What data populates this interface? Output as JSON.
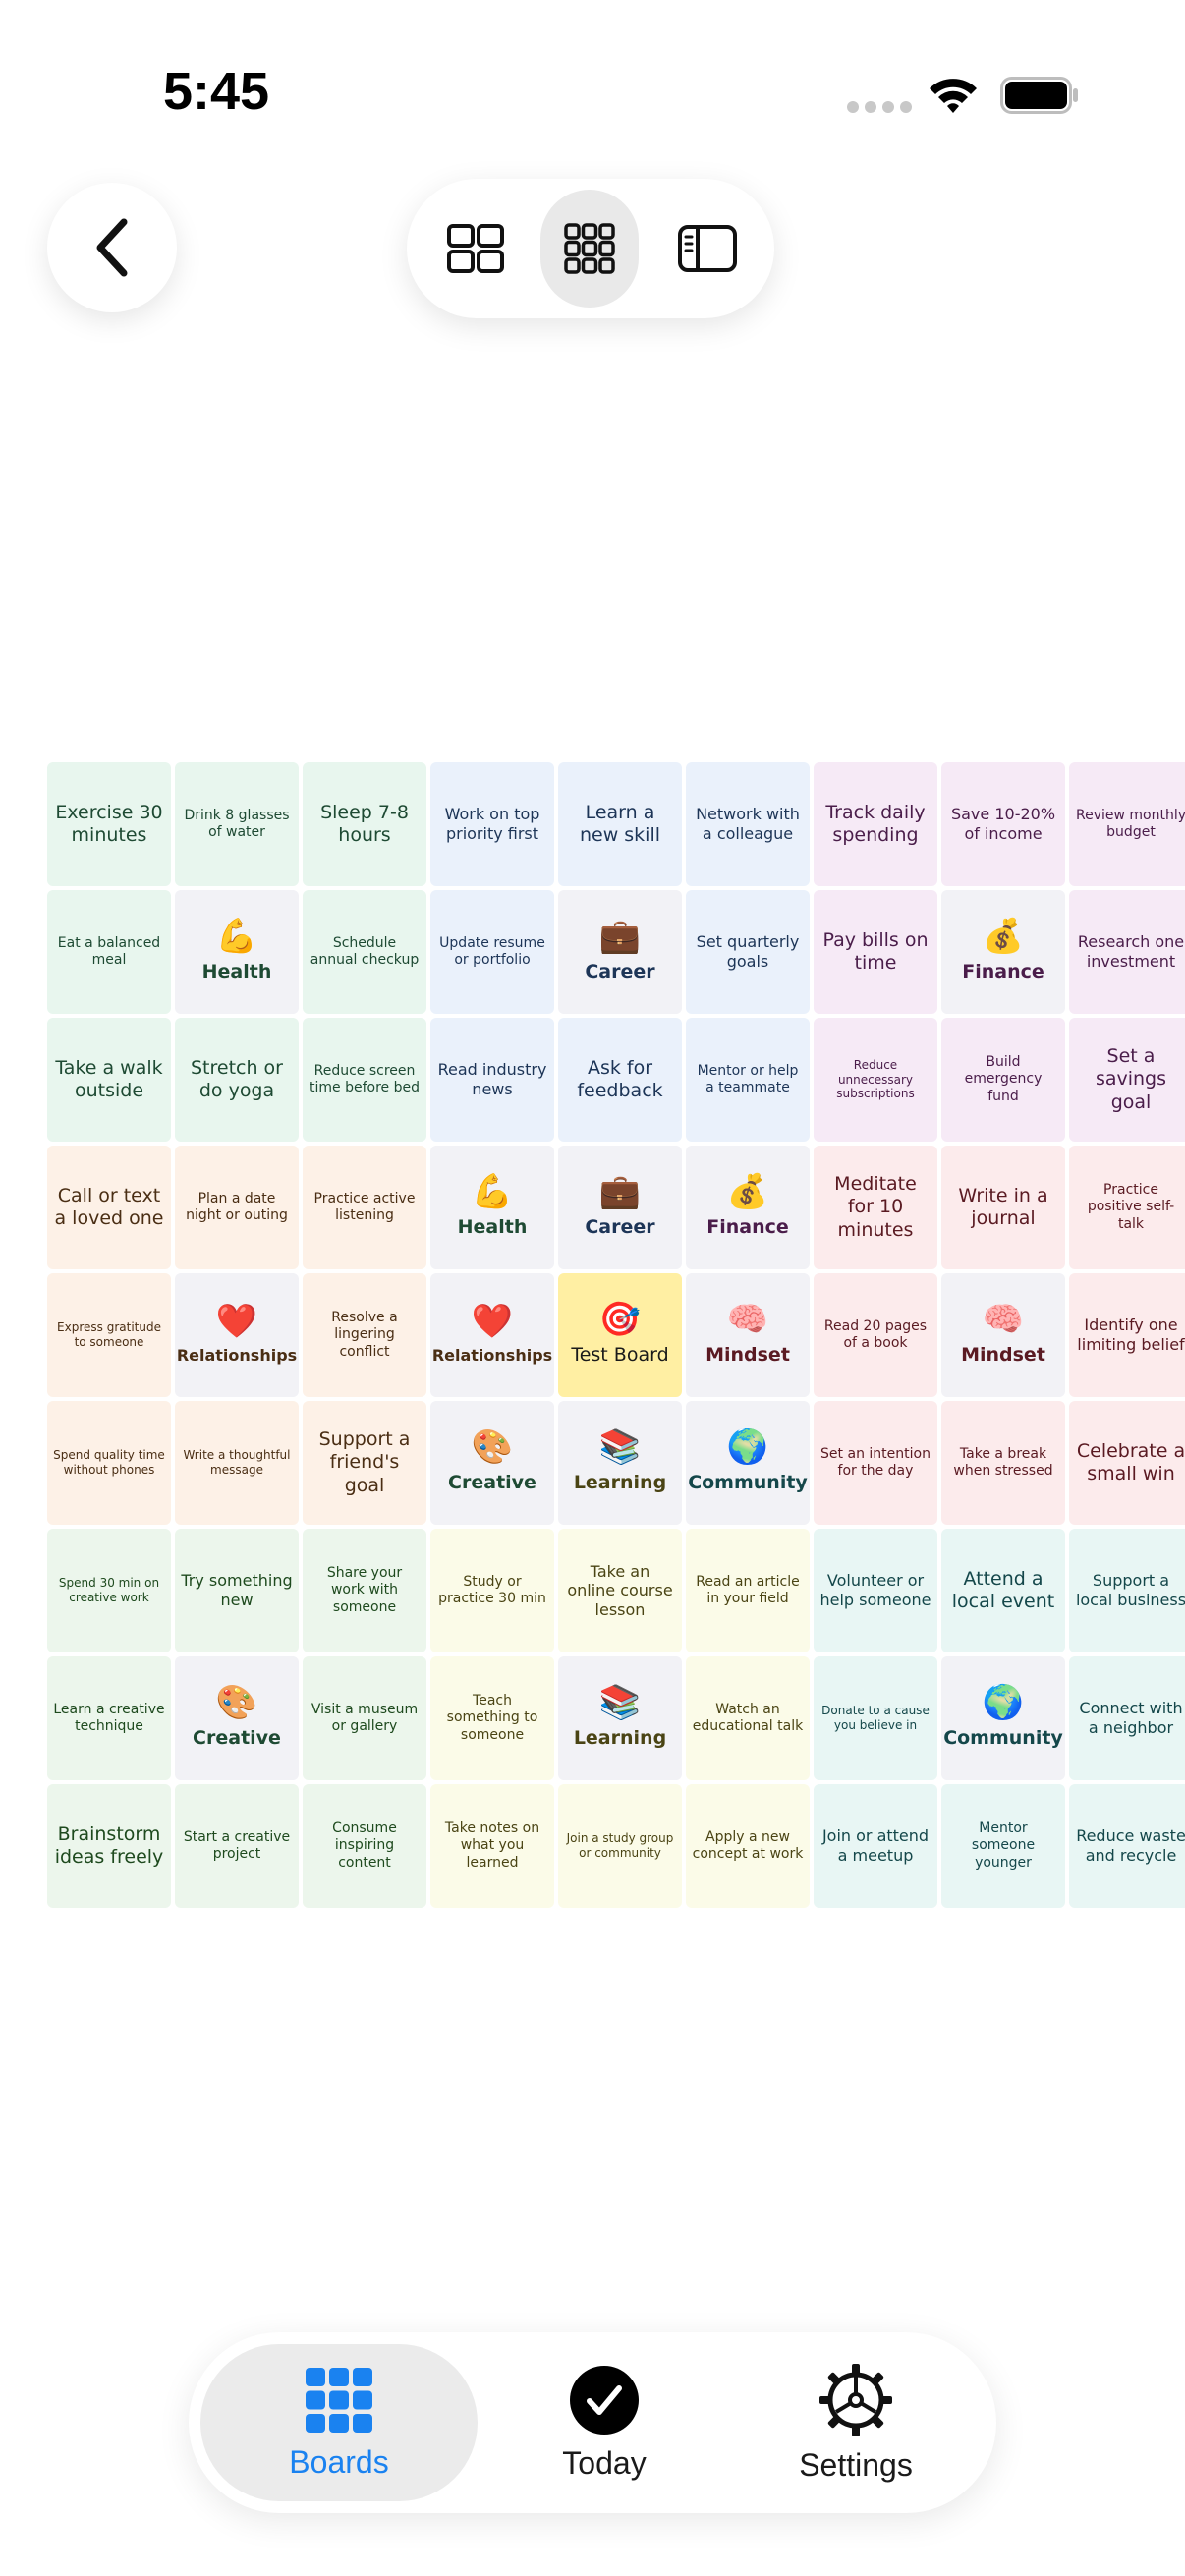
{
  "status_bar": {
    "time": "5:45"
  },
  "tab_bar": {
    "items": [
      {
        "label": "Boards",
        "icon": "grid-icon",
        "active": true
      },
      {
        "label": "Today",
        "icon": "checkmark-circle-icon",
        "active": false
      },
      {
        "label": "Settings",
        "icon": "gear-icon",
        "active": false
      }
    ]
  },
  "board": {
    "rows": [
      [
        {
          "text": "Exercise 30 minutes",
          "kind": "goal",
          "color": "#e8f6ee",
          "fg": "#1e4a33",
          "size": "l"
        },
        {
          "text": "Drink 8 glasses of water",
          "kind": "goal",
          "color": "#e8f6ee",
          "fg": "#1e4a33",
          "size": "s"
        },
        {
          "text": "Sleep 7-8 hours",
          "kind": "goal",
          "color": "#e8f6ee",
          "fg": "#1e4a33",
          "size": "l"
        },
        {
          "text": "Work on top priority first",
          "kind": "goal",
          "color": "#eaf1fb",
          "fg": "#1d3557",
          "size": "m"
        },
        {
          "text": "Learn a new skill",
          "kind": "goal",
          "color": "#eaf1fb",
          "fg": "#1d3557",
          "size": "l"
        },
        {
          "text": "Network with a colleague",
          "kind": "goal",
          "color": "#eaf1fb",
          "fg": "#1d3557",
          "size": "m"
        },
        {
          "text": "Track daily spending",
          "kind": "goal",
          "color": "#f6eaf6",
          "fg": "#4a1d4a",
          "size": "l"
        },
        {
          "text": "Save 10-20% of income",
          "kind": "goal",
          "color": "#f6eaf6",
          "fg": "#4a1d4a",
          "size": "m"
        },
        {
          "text": "Review monthly budget",
          "kind": "goal",
          "color": "#f6eaf6",
          "fg": "#4a1d4a",
          "size": "s"
        }
      ],
      [
        {
          "text": "Eat a balanced meal",
          "kind": "goal",
          "color": "#e8f6ee",
          "fg": "#1e4a33",
          "size": "s"
        },
        {
          "text": "Health",
          "kind": "category",
          "emoji": "💪",
          "color": "#f2f2f6",
          "fg": "#1e4a33"
        },
        {
          "text": "Schedule annual checkup",
          "kind": "goal",
          "color": "#e8f6ee",
          "fg": "#1e4a33",
          "size": "s"
        },
        {
          "text": "Update resume or portfolio",
          "kind": "goal",
          "color": "#eaf1fb",
          "fg": "#1d3557",
          "size": "s"
        },
        {
          "text": "Career",
          "kind": "category",
          "emoji": "💼",
          "color": "#f2f2f6",
          "fg": "#1d3557"
        },
        {
          "text": "Set quarterly goals",
          "kind": "goal",
          "color": "#eaf1fb",
          "fg": "#1d3557",
          "size": "m"
        },
        {
          "text": "Pay bills on time",
          "kind": "goal",
          "color": "#f6eaf6",
          "fg": "#4a1d4a",
          "size": "l"
        },
        {
          "text": "Finance",
          "kind": "category",
          "emoji": "💰",
          "color": "#f2f2f6",
          "fg": "#4a1d4a"
        },
        {
          "text": "Research one investment",
          "kind": "goal",
          "color": "#f6eaf6",
          "fg": "#4a1d4a",
          "size": "m"
        }
      ],
      [
        {
          "text": "Take a walk outside",
          "kind": "goal",
          "color": "#e8f6ee",
          "fg": "#1e4a33",
          "size": "l"
        },
        {
          "text": "Stretch or do yoga",
          "kind": "goal",
          "color": "#e8f6ee",
          "fg": "#1e4a33",
          "size": "l"
        },
        {
          "text": "Reduce screen time before bed",
          "kind": "goal",
          "color": "#e8f6ee",
          "fg": "#1e4a33",
          "size": "s"
        },
        {
          "text": "Read industry news",
          "kind": "goal",
          "color": "#eaf1fb",
          "fg": "#1d3557",
          "size": "m"
        },
        {
          "text": "Ask for feedback",
          "kind": "goal",
          "color": "#eaf1fb",
          "fg": "#1d3557",
          "size": "l"
        },
        {
          "text": "Mentor or help a teammate",
          "kind": "goal",
          "color": "#eaf1fb",
          "fg": "#1d3557",
          "size": "s"
        },
        {
          "text": "Reduce unnecessary subscriptions",
          "kind": "goal",
          "color": "#f6eaf6",
          "fg": "#4a1d4a",
          "size": "xs"
        },
        {
          "text": "Build emergency fund",
          "kind": "goal",
          "color": "#f6eaf6",
          "fg": "#4a1d4a",
          "size": "s"
        },
        {
          "text": "Set a savings goal",
          "kind": "goal",
          "color": "#f6eaf6",
          "fg": "#4a1d4a",
          "size": "l"
        }
      ],
      [
        {
          "text": "Call or text a loved one",
          "kind": "goal",
          "color": "#fdf1e7",
          "fg": "#4a2e14",
          "size": "l"
        },
        {
          "text": "Plan a date night or outing",
          "kind": "goal",
          "color": "#fdf1e7",
          "fg": "#4a2e14",
          "size": "s"
        },
        {
          "text": "Practice active listening",
          "kind": "goal",
          "color": "#fdf1e7",
          "fg": "#4a2e14",
          "size": "s"
        },
        {
          "text": "Health",
          "kind": "category",
          "emoji": "💪",
          "color": "#f2f2f6",
          "fg": "#1e4a33"
        },
        {
          "text": "Career",
          "kind": "category",
          "emoji": "💼",
          "color": "#f2f2f6",
          "fg": "#1d3557"
        },
        {
          "text": "Finance",
          "kind": "category",
          "emoji": "💰",
          "color": "#f2f2f6",
          "fg": "#4a1d4a"
        },
        {
          "text": "Meditate for 10 minutes",
          "kind": "goal",
          "color": "#fcebec",
          "fg": "#5a1a22",
          "size": "l"
        },
        {
          "text": "Write in a journal",
          "kind": "goal",
          "color": "#fcebec",
          "fg": "#5a1a22",
          "size": "l"
        },
        {
          "text": "Practice positive self-talk",
          "kind": "goal",
          "color": "#fcebec",
          "fg": "#5a1a22",
          "size": "s"
        }
      ],
      [
        {
          "text": "Express gratitude to someone",
          "kind": "goal",
          "color": "#fdf1e7",
          "fg": "#4a2e14",
          "size": "xs"
        },
        {
          "text": "Relationships",
          "kind": "category",
          "emoji": "❤️",
          "color": "#f2f2f6",
          "fg": "#4a2e14",
          "small": true
        },
        {
          "text": "Resolve a lingering conflict",
          "kind": "goal",
          "color": "#fdf1e7",
          "fg": "#4a2e14",
          "size": "s"
        },
        {
          "text": "Relationships",
          "kind": "category",
          "emoji": "❤️",
          "color": "#f2f2f6",
          "fg": "#4a2e14",
          "small": true
        },
        {
          "text": "Test Board",
          "kind": "center",
          "emoji": "🎯",
          "color": "#ffefa3",
          "fg": "#1a1a1a"
        },
        {
          "text": "Mindset",
          "kind": "category",
          "emoji": "🧠",
          "color": "#f2f2f6",
          "fg": "#5a1a22"
        },
        {
          "text": "Read 20 pages of a book",
          "kind": "goal",
          "color": "#fcebec",
          "fg": "#5a1a22",
          "size": "s"
        },
        {
          "text": "Mindset",
          "kind": "category",
          "emoji": "🧠",
          "color": "#f2f2f6",
          "fg": "#5a1a22"
        },
        {
          "text": "Identify one limiting belief",
          "kind": "goal",
          "color": "#fcebec",
          "fg": "#5a1a22",
          "size": "m"
        }
      ],
      [
        {
          "text": "Spend quality time without phones",
          "kind": "goal",
          "color": "#fdf1e7",
          "fg": "#4a2e14",
          "size": "xs"
        },
        {
          "text": "Write a thoughtful message",
          "kind": "goal",
          "color": "#fdf1e7",
          "fg": "#4a2e14",
          "size": "xs"
        },
        {
          "text": "Support a friend's goal",
          "kind": "goal",
          "color": "#fdf1e7",
          "fg": "#4a2e14",
          "size": "l"
        },
        {
          "text": "Creative",
          "kind": "category",
          "emoji": "🎨",
          "color": "#f2f2f6",
          "fg": "#1e4a33"
        },
        {
          "text": "Learning",
          "kind": "category",
          "emoji": "📚",
          "color": "#f2f2f6",
          "fg": "#4a4414"
        },
        {
          "text": "Community",
          "kind": "category",
          "emoji": "🌍",
          "color": "#f2f2f6",
          "fg": "#14474a"
        },
        {
          "text": "Set an intention for the day",
          "kind": "goal",
          "color": "#fcebec",
          "fg": "#5a1a22",
          "size": "s"
        },
        {
          "text": "Take a break when stressed",
          "kind": "goal",
          "color": "#fcebec",
          "fg": "#5a1a22",
          "size": "s"
        },
        {
          "text": "Celebrate a small win",
          "kind": "goal",
          "color": "#fcebec",
          "fg": "#5a1a22",
          "size": "l"
        }
      ],
      [
        {
          "text": "Spend 30 min on creative work",
          "kind": "goal",
          "color": "#ecf6ec",
          "fg": "#1e4a1e",
          "size": "xs"
        },
        {
          "text": "Try something new",
          "kind": "goal",
          "color": "#ecf6ec",
          "fg": "#1e4a1e",
          "size": "m"
        },
        {
          "text": "Share your work with someone",
          "kind": "goal",
          "color": "#ecf6ec",
          "fg": "#1e4a1e",
          "size": "s"
        },
        {
          "text": "Study or practice 30 min",
          "kind": "goal",
          "color": "#fbfbe8",
          "fg": "#4a4414",
          "size": "s"
        },
        {
          "text": "Take an online course lesson",
          "kind": "goal",
          "color": "#fbfbe8",
          "fg": "#4a4414",
          "size": "m"
        },
        {
          "text": "Read an article in your field",
          "kind": "goal",
          "color": "#fbfbe8",
          "fg": "#4a4414",
          "size": "s"
        },
        {
          "text": "Volunteer or help someone",
          "kind": "goal",
          "color": "#e8f6f4",
          "fg": "#14474a",
          "size": "m"
        },
        {
          "text": "Attend a local event",
          "kind": "goal",
          "color": "#e8f6f4",
          "fg": "#14474a",
          "size": "l"
        },
        {
          "text": "Support a local business",
          "kind": "goal",
          "color": "#e8f6f4",
          "fg": "#14474a",
          "size": "m"
        }
      ],
      [
        {
          "text": "Learn a creative technique",
          "kind": "goal",
          "color": "#ecf6ec",
          "fg": "#1e4a1e",
          "size": "s"
        },
        {
          "text": "Creative",
          "kind": "category",
          "emoji": "🎨",
          "color": "#f2f2f6",
          "fg": "#1e4a33"
        },
        {
          "text": "Visit a museum or gallery",
          "kind": "goal",
          "color": "#ecf6ec",
          "fg": "#1e4a1e",
          "size": "s"
        },
        {
          "text": "Teach something to someone",
          "kind": "goal",
          "color": "#fbfbe8",
          "fg": "#4a4414",
          "size": "s"
        },
        {
          "text": "Learning",
          "kind": "category",
          "emoji": "📚",
          "color": "#f2f2f6",
          "fg": "#4a4414"
        },
        {
          "text": "Watch an educational talk",
          "kind": "goal",
          "color": "#fbfbe8",
          "fg": "#4a4414",
          "size": "s"
        },
        {
          "text": "Donate to a cause you believe in",
          "kind": "goal",
          "color": "#e8f6f4",
          "fg": "#14474a",
          "size": "xs"
        },
        {
          "text": "Community",
          "kind": "category",
          "emoji": "🌍",
          "color": "#f2f2f6",
          "fg": "#14474a"
        },
        {
          "text": "Connect with a neighbor",
          "kind": "goal",
          "color": "#e8f6f4",
          "fg": "#14474a",
          "size": "m"
        }
      ],
      [
        {
          "text": "Brainstorm ideas freely",
          "kind": "goal",
          "color": "#ecf6ec",
          "fg": "#1e4a1e",
          "size": "l"
        },
        {
          "text": "Start a creative project",
          "kind": "goal",
          "color": "#ecf6ec",
          "fg": "#1e4a1e",
          "size": "s"
        },
        {
          "text": "Consume inspiring content",
          "kind": "goal",
          "color": "#ecf6ec",
          "fg": "#1e4a1e",
          "size": "s"
        },
        {
          "text": "Take notes on what you learned",
          "kind": "goal",
          "color": "#fbfbe8",
          "fg": "#4a4414",
          "size": "s"
        },
        {
          "text": "Join a study group or community",
          "kind": "goal",
          "color": "#fbfbe8",
          "fg": "#4a4414",
          "size": "xs"
        },
        {
          "text": "Apply a new concept at work",
          "kind": "goal",
          "color": "#fbfbe8",
          "fg": "#4a4414",
          "size": "s"
        },
        {
          "text": "Join or attend a meetup",
          "kind": "goal",
          "color": "#e8f6f4",
          "fg": "#14474a",
          "size": "m"
        },
        {
          "text": "Mentor someone younger",
          "kind": "goal",
          "color": "#e8f6f4",
          "fg": "#14474a",
          "size": "s"
        },
        {
          "text": "Reduce waste and recycle",
          "kind": "goal",
          "color": "#e8f6f4",
          "fg": "#14474a",
          "size": "m"
        }
      ]
    ]
  }
}
